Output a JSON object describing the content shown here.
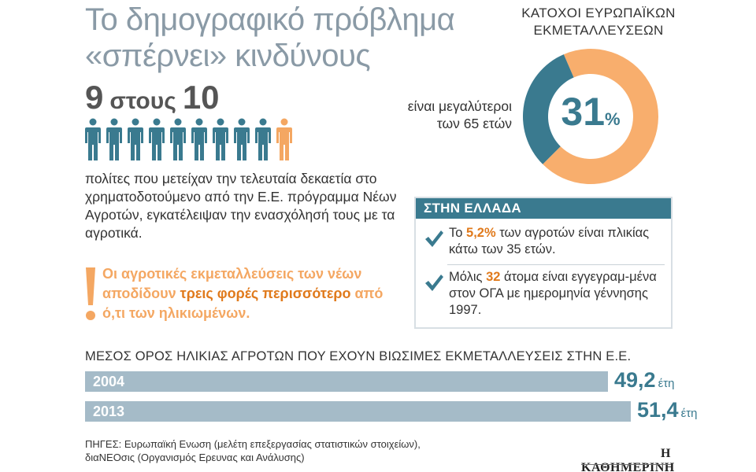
{
  "header": {
    "title_line1": "Το δημογραφικό πρόβλημα",
    "title_line2": "«σπέρνει» κινδύνους"
  },
  "ratio": {
    "numerator": "9",
    "word": "στους",
    "denominator": "10"
  },
  "people": {
    "total": 10,
    "highlighted": 1,
    "base_color": "#3a7a8f",
    "highlight_color": "#f4a762"
  },
  "intro_text": "πολίτες που μετείχαν την τελευταία δεκαετία στο χρηματοδοτούμενο από την Ε.Ε. πρόγραμμα Νέων Αγροτών, εγκατέλειψαν την ενασχόλησή τους με τα αγροτικά.",
  "callout": {
    "part1": "Οι αγροτικές εκμεταλλεύσεις των νέων αποδίδουν ",
    "highlight": "τρεις φορές περισσότερο",
    "part2": " από ό,τι των ηλικιωμένων."
  },
  "donut": {
    "title_line1": "ΚΑΤΟΧΟΙ ΕΥΡΩΠΑΪΚΩΝ",
    "title_line2": "ΕΚΜΕΤΑΛΛΕΥΣΕΩΝ",
    "value": "31",
    "unit": "%",
    "percent": 31,
    "caption_line1": "είναι μεγαλύτεροι",
    "caption_line2": "των 65 ετών",
    "color_value": "#3a7a8f",
    "color_rest": "#f8ae6d"
  },
  "greece": {
    "heading": "ΣΤΗΝ ΕΛΛΑΔΑ",
    "items": [
      {
        "pre": "Το ",
        "num": "5,2%",
        "post": " των αγροτών είναι πλικίας κάτω των 35 ετών."
      },
      {
        "pre": "Μόλις ",
        "num": "32",
        "post": " άτομα είναι εγγεγραμ-μένα στον ΟΓΑ με ημερομηνία γέννησης 1997."
      }
    ]
  },
  "chart_data": {
    "type": "bar",
    "orientation": "horizontal",
    "title": "ΜΕΣΟΣ ΟΡΟΣ ΗΛΙΚΙΑΣ ΑΓΡΟΤΩΝ ΠΟΥ ΕΧΟΥΝ ΒΙΩΣΙΜΕΣ ΕΚΜΕΤΑΛΛΕΥΣΕΙΣ ΣΤΗΝ Ε.Ε.",
    "categories": [
      "2004",
      "2013"
    ],
    "values": [
      49.2,
      51.4
    ],
    "value_labels": [
      "49,2",
      "51,4"
    ],
    "unit": "έτη",
    "xlim": [
      0,
      54.5
    ],
    "bar_color": "#a5bbc8",
    "label_color": "#3a7a8f"
  },
  "footer": {
    "sources_line1": "ΠΗΓΕΣ: Ευρωπαϊκή Ενωση (μελέτη επεξεργασίας στατιστικών στοιχείων),",
    "sources_line2": "διαΝΕΟσις (Οργανισμός Ερευνας και Ανάλυσης)",
    "logo": "Η ΚΑΘΗΜΕΡΙΝΗ"
  }
}
